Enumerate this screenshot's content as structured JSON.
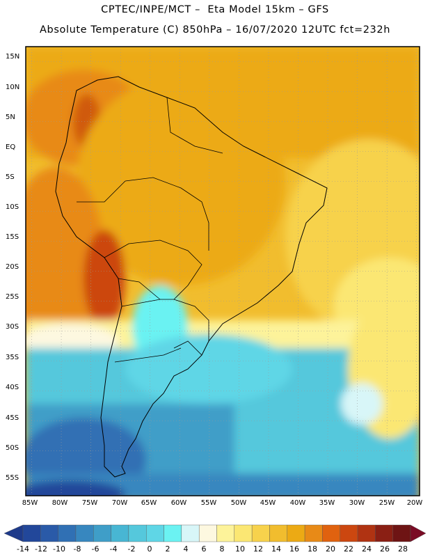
{
  "header": {
    "line1": "CPTEC/INPE/MCT –  Eta Model 15km – GFS",
    "line2": "Absolute Temperature (C) 850hPa – 16/07/2020 12UTC fct=232h"
  },
  "map": {
    "lat_labels": [
      "15N",
      "10N",
      "5N",
      "EQ",
      "5S",
      "10S",
      "15S",
      "20S",
      "25S",
      "30S",
      "35S",
      "40S",
      "45S",
      "50S",
      "55S"
    ],
    "lon_labels": [
      "85W",
      "80W",
      "75W",
      "70W",
      "65W",
      "60W",
      "55W",
      "50W",
      "45W",
      "40W",
      "35W",
      "30W",
      "25W",
      "20W"
    ],
    "lat_values": [
      15,
      10,
      5,
      0,
      -5,
      -10,
      -15,
      -20,
      -25,
      -30,
      -35,
      -40,
      -45,
      -50,
      -55
    ],
    "lon_values": [
      -85,
      -80,
      -75,
      -70,
      -65,
      -60,
      -55,
      -50,
      -45,
      -40,
      -35,
      -30,
      -25,
      -20
    ],
    "extent": {
      "lon_min": -86,
      "lon_max": -19.5,
      "lat_min": -57.5,
      "lat_max": 17.5
    }
  },
  "colorbar": {
    "labels": [
      "-14",
      "-12",
      "-10",
      "-8",
      "-6",
      "-4",
      "-2",
      "0",
      "2",
      "4",
      "6",
      "8",
      "10",
      "12",
      "14",
      "16",
      "18",
      "20",
      "22",
      "24",
      "26",
      "28"
    ],
    "colors": [
      "#1e3a8a",
      "#22479a",
      "#2a5aa8",
      "#3070b4",
      "#3787bf",
      "#3f9ec8",
      "#48b6d3",
      "#55c8dc",
      "#5fd6e6",
      "#6bf2f2",
      "#d8f6f8",
      "#fdf8e0",
      "#fdf39a",
      "#fbe773",
      "#f7d24c",
      "#f1bd2e",
      "#ecaa14",
      "#e88a17",
      "#e0620f",
      "#cc4710",
      "#b03312",
      "#8a1f14",
      "#6e1414",
      "#7a0b25"
    ]
  }
}
